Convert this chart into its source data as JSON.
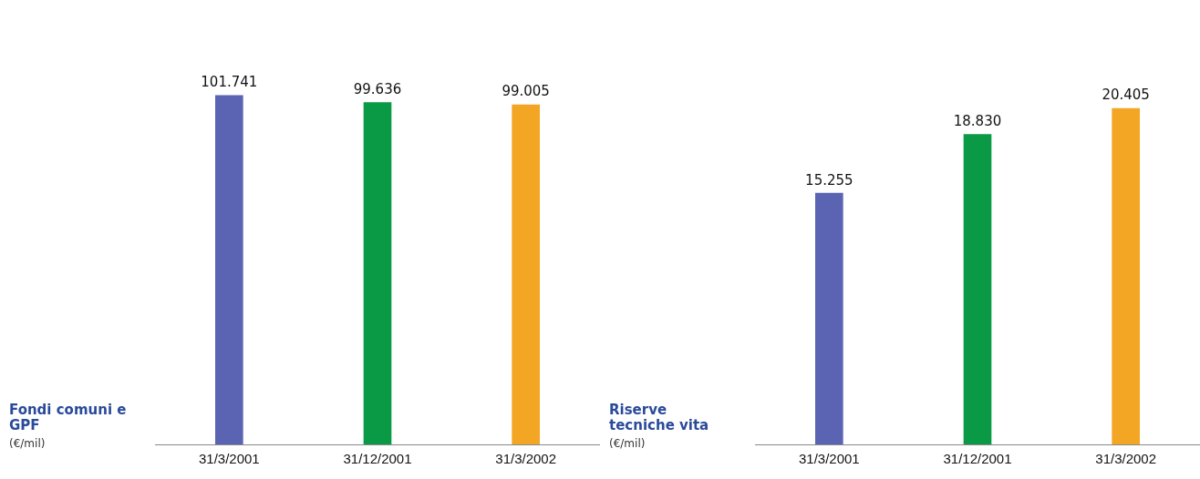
{
  "chart_data": [
    {
      "type": "bar",
      "title": "Fondi comuni e GPF",
      "ylabel": "(€/mil)",
      "categories": [
        "31/3/2001",
        "31/12/2001",
        "31/3/2002"
      ],
      "values": [
        101741,
        99636,
        99005
      ],
      "colors": [
        "#5b63b3",
        "#0a9a45",
        "#f2a623"
      ],
      "value_labels": [
        "101.741",
        "99.636",
        "99.005"
      ],
      "grid": false,
      "legend": false
    },
    {
      "type": "bar",
      "title": "Riserve tecniche vita",
      "ylabel": "(€/mil)",
      "categories": [
        "31/3/2001",
        "31/12/2001",
        "31/3/2002"
      ],
      "values": [
        15255,
        18830,
        20405
      ],
      "colors": [
        "#5b63b3",
        "#0a9a45",
        "#f2a623"
      ],
      "value_labels": [
        "15.255",
        "18.830",
        "20.405"
      ],
      "grid": false,
      "legend": false
    }
  ]
}
